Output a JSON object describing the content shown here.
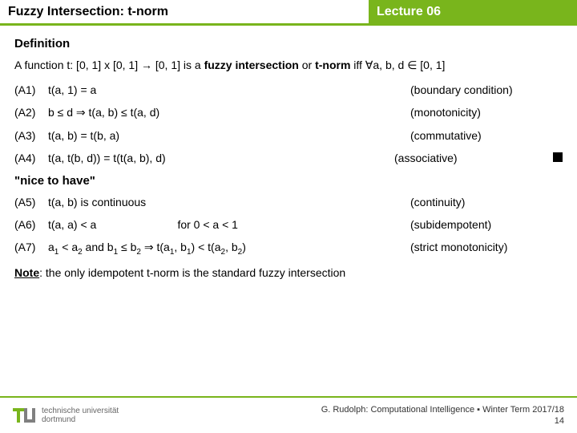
{
  "header": {
    "title_left": "Fuzzy Intersection: t-norm",
    "title_right": "Lecture 06"
  },
  "definition": {
    "heading": "Definition",
    "text_prefix": "A function t: [0, 1] x [0, 1] → [0, 1] is a ",
    "bold1": "fuzzy intersection",
    "or": " or ",
    "bold2": "t-norm",
    "text_suffix": " iff  ∀a, b, d ∈ [0, 1]"
  },
  "axioms": [
    {
      "label": "(A1)",
      "body": "t(a, 1) = a",
      "desc": "(boundary condition)"
    },
    {
      "label": "(A2)",
      "body": "b ≤ d  ⇒  t(a, b) ≤ t(a, d)",
      "desc": "(monotonicity)"
    },
    {
      "label": "(A3)",
      "body": "t(a, b) = t(b, a)",
      "desc": "(commutative)"
    },
    {
      "label": "(A4)",
      "body": "t(a, t(b, d)) = t(t(a, b), d)",
      "desc": "(associative)"
    }
  ],
  "nice": "\"nice to have\"",
  "extras": [
    {
      "label": "(A5)",
      "body": "t(a, b) is continuous",
      "desc": "(continuity)"
    },
    {
      "label": "(A6)",
      "body": "t(a, a) < a                          for 0 < a < 1",
      "desc": "(subidempotent)"
    }
  ],
  "a7": {
    "label": "(A7)",
    "body_html": "a<span class=\"sub\">1</span> < a<span class=\"sub\">2</span> and b<span class=\"sub\">1</span> ≤ b<span class=\"sub\">2</span>  ⇒  t(a<span class=\"sub\">1</span>, b<span class=\"sub\">1</span>) < t(a<span class=\"sub\">2</span>, b<span class=\"sub\">2</span>)",
    "desc": "(strict monotonicity)"
  },
  "note": {
    "label": "Note",
    "text": ": the only idempotent t-norm is the standard fuzzy intersection"
  },
  "footer": {
    "uni1": "technische universität",
    "uni2": "dortmund",
    "credit": "G. Rudolph: Computational Intelligence ▪ Winter Term 2017/18",
    "page": "14"
  },
  "colors": {
    "accent": "#79b51c",
    "logo_gray": "#808080"
  }
}
